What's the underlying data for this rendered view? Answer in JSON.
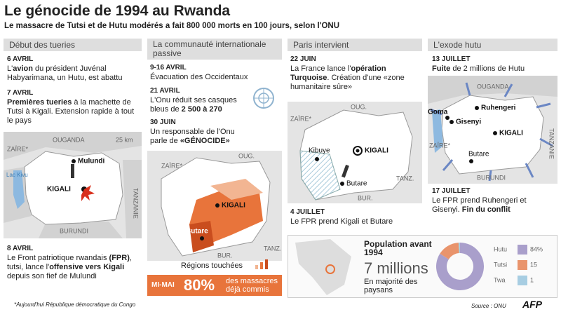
{
  "header": {
    "title": "Le génocide de 1994 au Rwanda",
    "subtitle": "Le massacre de Tutsi et de Hutu modérés a fait 800 000 morts en 100 jours, selon l'ONU"
  },
  "panels": [
    {
      "title": "Début des tueries",
      "entries": [
        {
          "date": "6 AVRIL",
          "runs": [
            {
              "text": "L'"
            },
            {
              "text": "avion",
              "bold": true
            },
            {
              "text": " du président Juvénal Habyarimana, un Hutu, est abattu"
            }
          ]
        },
        {
          "date": "7 AVRIL",
          "runs": [
            {
              "text": "Premières tueries",
              "bold": true
            },
            {
              "text": " à la machette de Tutsi à Kigali. Extension rapide à tout le pays"
            }
          ]
        },
        {
          "date": "8 AVRIL",
          "runs": [
            {
              "text": "Le Front patriotique rwandais "
            },
            {
              "text": "(FPR)",
              "bold": true
            },
            {
              "text": ", tutsi, lance l'"
            },
            {
              "text": "offensive vers Kigali",
              "bold": true
            },
            {
              "text": " depuis son fief de Mulundi"
            }
          ]
        }
      ],
      "map_labels": [
        "OUGANDA",
        "25 km",
        "ZAÏRE*",
        "Lac Kivu",
        "Mulundi",
        "KIGALI",
        "BURUNDI",
        "TANZANIE"
      ]
    },
    {
      "title": "La communauté internationale passive",
      "entries": [
        {
          "date": "9-16 AVRIL",
          "runs": [
            {
              "text": "Évacuation des Occidentaux"
            }
          ]
        },
        {
          "date": "21 AVRIL",
          "runs": [
            {
              "text": "L'Onu réduit ses casques bleus de "
            },
            {
              "text": "2 500 à 270",
              "bold": true
            }
          ]
        },
        {
          "date": "30 JUIN",
          "runs": [
            {
              "text": "Un responsable de l'Onu parle de "
            },
            {
              "text": "«GÉNOCIDE»",
              "bold": true
            }
          ]
        }
      ],
      "map_labels": [
        "ZAÏRE*",
        "OUG.",
        "KIGALI",
        "Butare",
        "BUR.",
        "TANZ."
      ],
      "legend": "Régions touchées",
      "box": {
        "period": "MI-MAI",
        "figure": "80%",
        "text": "des massacres déjà commis"
      }
    },
    {
      "title": "Paris intervient",
      "entries": [
        {
          "date": "22 JUIN",
          "runs": [
            {
              "text": "La France lance l'"
            },
            {
              "text": "opération Turquoise",
              "bold": true
            },
            {
              "text": ". Création d'une «zone humanitaire sûre»"
            }
          ]
        },
        {
          "date": "4 JUILLET",
          "runs": [
            {
              "text": "Le FPR prend Kigali et Butare"
            }
          ]
        }
      ],
      "map_labels": [
        "OUG.",
        "ZAÏRE*",
        "Kibuye",
        "KIGALI",
        "Butare",
        "BUR.",
        "TANZ."
      ]
    },
    {
      "title": "L'exode hutu",
      "entries": [
        {
          "date": "13 JUILLET",
          "runs": [
            {
              "text": "Fuite",
              "bold": true
            },
            {
              "text": " de 2 millions de Hutu"
            }
          ]
        },
        {
          "date": "17 JUILLET",
          "runs": [
            {
              "text": "Le FPR prend Ruhengeri et Gisenyi. "
            },
            {
              "text": "Fin du conflit",
              "bold": true
            }
          ]
        }
      ],
      "map_labels": [
        "OUGANDA",
        "Goma",
        "Ruhengeri",
        "Gisenyi",
        "KIGALI",
        "ZAÏRE*",
        "Butare",
        "BURUNDI",
        "TANZANIE"
      ]
    }
  ],
  "population": {
    "title": "Population avant 1994",
    "value": "7 millions",
    "note": "En majorité des paysans"
  },
  "chart_data": {
    "type": "pie",
    "categories": [
      "Hutu",
      "Tutsi",
      "Twa"
    ],
    "values": [
      84,
      15,
      1
    ],
    "value_labels": [
      "84%",
      "15",
      "1"
    ],
    "colors": [
      "#a99fcb",
      "#e9946c",
      "#a7cde2"
    ]
  },
  "footnote": "*Aujourd'hui République démocratique du Congo",
  "source": "Source : ONU",
  "credit": "AFP"
}
